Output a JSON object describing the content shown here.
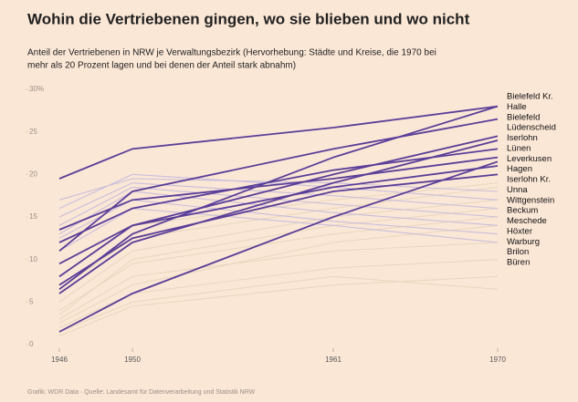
{
  "chart_data": {
    "type": "line",
    "title": "Wohin die Vertriebenen gingen, wo sie blieben und wo nicht",
    "subtitle": [
      "Anteil der Vertriebenen in NRW je Verwaltungsbezirk (Hervorhebung: Städte und Kreise, die 1970 bei",
      "mehr als 20 Prozent lagen und bei denen der Anteil stark abnahm)"
    ],
    "source": "Grafik: WDR Data · Quelle: Landesamt für Datenverarbeitung und Statistik NRW",
    "x": [
      1946,
      1950,
      1961,
      1970
    ],
    "xlim": [
      1946,
      1970
    ],
    "xticks": [
      1946,
      1950,
      1961,
      1970
    ],
    "ylim": [
      0,
      30
    ],
    "yticks": [
      0,
      5,
      10,
      15,
      20,
      25,
      {
        "value": 30,
        "label": "30%"
      }
    ],
    "series": [
      {
        "color": "#e8d8c0",
        "values": [
          1,
          4.5,
          7,
          8
        ]
      },
      {
        "color": "#e8d8c0",
        "values": [
          2,
          6,
          9,
          10
        ]
      },
      {
        "color": "#e8d8c0",
        "values": [
          3,
          8,
          11,
          12
        ]
      },
      {
        "color": "#e8d8c0",
        "values": [
          4,
          9.5,
          13,
          15
        ]
      },
      {
        "color": "#e8d8c0",
        "values": [
          5,
          11,
          15,
          17
        ]
      },
      {
        "color": "#e8d8c0",
        "values": [
          6.5,
          12.5,
          16,
          18.5
        ]
      },
      {
        "color": "#e8d8c0",
        "values": [
          2.5,
          7,
          12,
          14
        ]
      },
      {
        "color": "#e8d8c0",
        "values": [
          8,
          14,
          17,
          19
        ]
      },
      {
        "color": "#e8d8c0",
        "values": [
          3.5,
          10,
          14,
          16
        ]
      },
      {
        "color": "#e8d8c0",
        "values": [
          1.5,
          5,
          8,
          6.5
        ]
      },
      {
        "name": "Wittgenstein",
        "color": "#c9bedc",
        "values": [
          17,
          19.5,
          19,
          18
        ]
      },
      {
        "name": "Beckum",
        "color": "#c9bedc",
        "values": [
          16,
          20,
          18.5,
          17
        ]
      },
      {
        "name": "Meschede",
        "color": "#c9bedc",
        "values": [
          15,
          19,
          17.5,
          16
        ]
      },
      {
        "name": "Höxter",
        "color": "#c9bedc",
        "values": [
          14,
          18.5,
          16.5,
          15
        ]
      },
      {
        "name": "Warburg",
        "color": "#c9bedc",
        "values": [
          13,
          18,
          15.5,
          14
        ]
      },
      {
        "name": "Brilon",
        "color": "#c9bedc",
        "values": [
          12.5,
          17,
          14.5,
          13
        ]
      },
      {
        "name": "Büren",
        "color": "#c9bedc",
        "values": [
          11,
          16,
          14,
          12
        ]
      },
      {
        "name": "Bielefeld Kr.",
        "color": "#5a3e98",
        "values": [
          6.5,
          13,
          22,
          28
        ]
      },
      {
        "name": "Halle",
        "color": "#5a3e98",
        "values": [
          19.5,
          23,
          25.5,
          28
        ]
      },
      {
        "name": "Bielefeld",
        "color": "#5a3e98",
        "values": [
          11,
          18,
          23,
          26.5
        ]
      },
      {
        "name": "Lüdenscheid",
        "color": "#5a3e98",
        "values": [
          8,
          14,
          20,
          24.5
        ]
      },
      {
        "name": "Iserlohn",
        "color": "#5a3e98",
        "values": [
          6,
          12,
          19,
          24
        ]
      },
      {
        "name": "Lünen",
        "color": "#5a3e98",
        "values": [
          12,
          16,
          20.5,
          23
        ]
      },
      {
        "name": "Leverkusen",
        "color": "#5a3e98",
        "values": [
          13.5,
          17,
          19.5,
          22
        ]
      },
      {
        "name": "Hagen",
        "color": "#5a3e98",
        "values": [
          1.5,
          6,
          15,
          21.5
        ]
      },
      {
        "name": "Iserlohn Kr.",
        "color": "#5a3e98",
        "values": [
          9.5,
          14,
          18.5,
          21
        ]
      },
      {
        "name": "Unna",
        "color": "#5a3e98",
        "values": [
          7,
          12.5,
          18,
          20
        ]
      }
    ]
  }
}
